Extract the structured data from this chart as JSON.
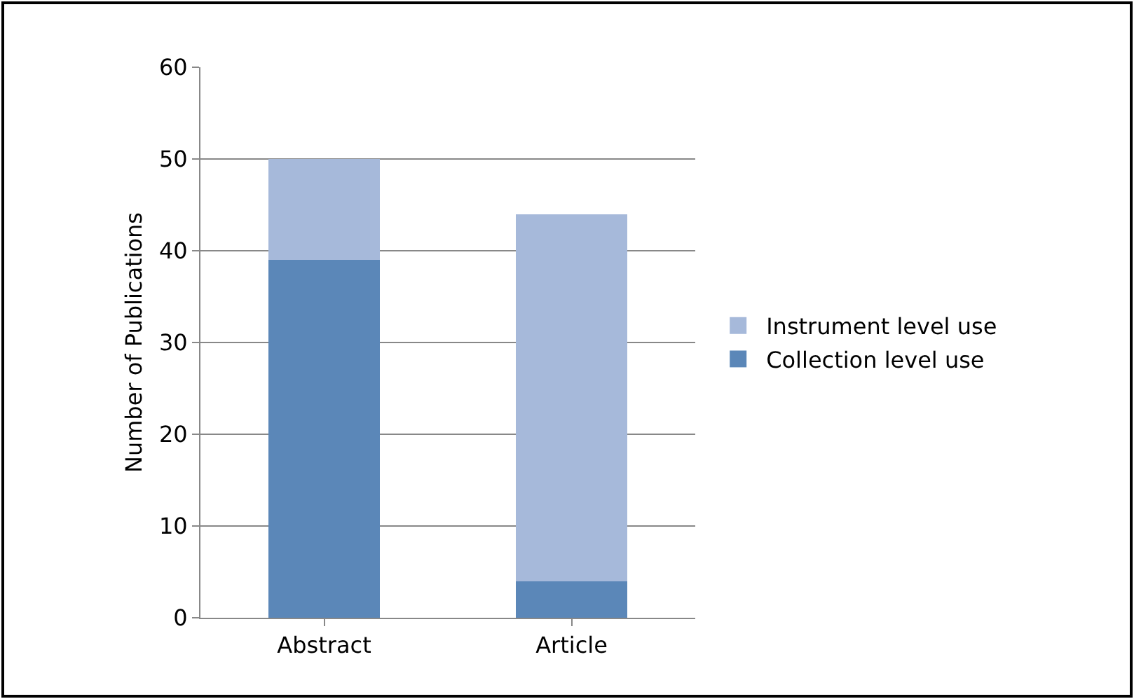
{
  "chart_data": {
    "type": "bar",
    "stacked": true,
    "ylabel": "Number of Publications",
    "categories": [
      "Abstract",
      "Article"
    ],
    "series": [
      {
        "name": "Collection level use",
        "color": "#5b87b8",
        "values": [
          39,
          4
        ]
      },
      {
        "name": "Instrument level use",
        "color": "#a6b9da",
        "values": [
          11,
          40
        ]
      }
    ],
    "ylim": [
      0,
      60
    ],
    "yticks": [
      0,
      10,
      20,
      30,
      40,
      50,
      60
    ],
    "grid": "y",
    "legend": "right"
  }
}
